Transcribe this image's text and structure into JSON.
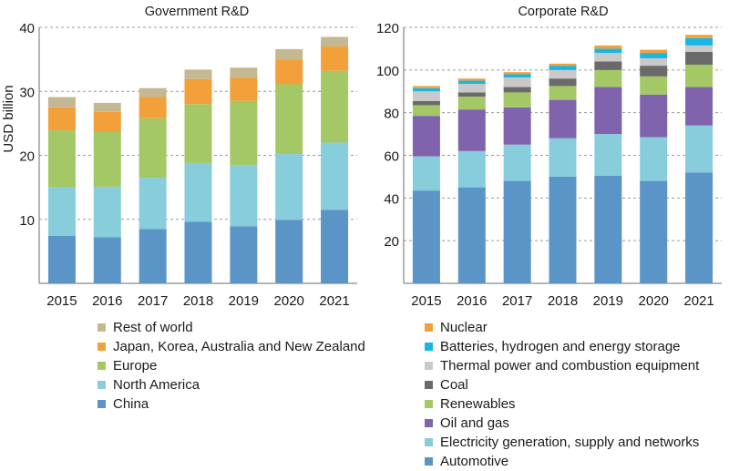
{
  "chart_data": [
    {
      "type": "bar",
      "stacked": true,
      "title": "Government R&D",
      "ylabel": "USD billion",
      "xlabel": "",
      "categories": [
        "2015",
        "2016",
        "2017",
        "2018",
        "2019",
        "2020",
        "2021"
      ],
      "ylim": [
        0,
        40
      ],
      "yticks": [
        10,
        20,
        30,
        40
      ],
      "grid": "dashed horizontal",
      "legend_position": "bottom",
      "series": [
        {
          "name": "China",
          "color": "#5b94c6",
          "values": [
            7.4,
            7.2,
            8.5,
            9.6,
            8.9,
            9.9,
            11.5
          ]
        },
        {
          "name": "North America",
          "color": "#87cddb",
          "values": [
            7.6,
            7.9,
            8.0,
            9.2,
            9.6,
            10.3,
            10.5
          ]
        },
        {
          "name": "Europe",
          "color": "#a4c865",
          "values": [
            8.9,
            8.6,
            9.3,
            9.2,
            10.0,
            10.9,
            11.2
          ]
        },
        {
          "name": "Japan, Korea, Australia and New Zealand",
          "color": "#f2a13a",
          "values": [
            3.6,
            3.1,
            3.3,
            3.9,
            3.6,
            3.9,
            3.8
          ]
        },
        {
          "name": "Rest of world",
          "color": "#c4b891",
          "values": [
            1.6,
            1.4,
            1.4,
            1.5,
            1.6,
            1.6,
            1.5
          ]
        }
      ]
    },
    {
      "type": "bar",
      "stacked": true,
      "title": "Corporate R&D",
      "ylabel": "",
      "xlabel": "",
      "categories": [
        "2015",
        "2016",
        "2017",
        "2018",
        "2019",
        "2020",
        "2021"
      ],
      "ylim": [
        0,
        120
      ],
      "yticks": [
        20,
        40,
        60,
        80,
        100,
        120
      ],
      "grid": "dashed horizontal",
      "legend_position": "bottom",
      "series": [
        {
          "name": "Automotive",
          "color": "#5b94c6",
          "values": [
            43.5,
            45.0,
            48.0,
            50.0,
            50.5,
            48.0,
            52.0
          ]
        },
        {
          "name": "Electricity generation, supply and networks",
          "color": "#87cddb",
          "values": [
            16.0,
            17.0,
            17.0,
            18.0,
            19.5,
            20.5,
            22.0
          ]
        },
        {
          "name": "Oil and gas",
          "color": "#7f63ad",
          "values": [
            19.0,
            19.5,
            17.5,
            18.0,
            22.0,
            20.0,
            18.0
          ]
        },
        {
          "name": "Renewables",
          "color": "#a4c865",
          "values": [
            5.0,
            6.0,
            7.0,
            6.5,
            8.0,
            8.5,
            10.5
          ]
        },
        {
          "name": "Coal",
          "color": "#6a6a6a",
          "values": [
            2.0,
            2.0,
            2.5,
            3.5,
            4.0,
            5.0,
            6.0
          ]
        },
        {
          "name": "Thermal power and combustion equipment",
          "color": "#c9c9c9",
          "values": [
            4.5,
            4.0,
            4.5,
            4.0,
            4.0,
            3.5,
            3.0
          ]
        },
        {
          "name": "Batteries, hydrogen and energy storage",
          "color": "#19b6e3",
          "values": [
            1.5,
            1.5,
            1.5,
            2.0,
            2.0,
            2.5,
            3.5
          ]
        },
        {
          "name": "Nuclear",
          "color": "#f2a13a",
          "values": [
            1.0,
            1.0,
            1.0,
            1.0,
            1.5,
            1.5,
            1.5
          ]
        }
      ]
    }
  ]
}
